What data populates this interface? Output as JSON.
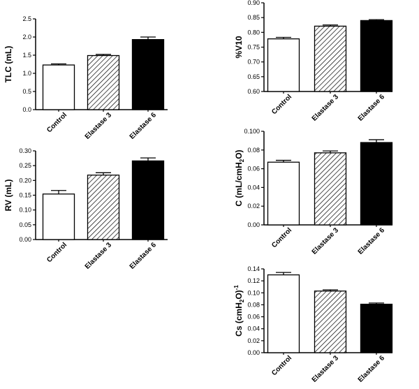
{
  "chart_data": [
    {
      "id": "tlc",
      "type": "bar",
      "title": "",
      "ylabel": "TLC (mL)",
      "ylabel_sub": "",
      "ylabel_tail": "",
      "ylabel_sup": "",
      "categories": [
        "Control",
        "Elastase 3",
        "Elastase 6"
      ],
      "values": [
        1.23,
        1.49,
        1.93
      ],
      "errors": [
        0.03,
        0.03,
        0.07
      ],
      "ylim": [
        0,
        2.5
      ],
      "yticks": [
        0.0,
        0.5,
        1.0,
        1.5,
        2.0,
        2.5
      ],
      "ytick_labels": [
        "0.0",
        "0.5",
        "1.0",
        "1.5",
        "2.0",
        "2.5"
      ]
    },
    {
      "id": "rv",
      "type": "bar",
      "title": "",
      "ylabel": "RV (mL)",
      "ylabel_sub": "",
      "ylabel_tail": "",
      "ylabel_sup": "",
      "categories": [
        "Control",
        "Elastase 3",
        "Elastase 6"
      ],
      "values": [
        0.154,
        0.218,
        0.266
      ],
      "errors": [
        0.012,
        0.008,
        0.01
      ],
      "ylim": [
        0,
        0.3
      ],
      "yticks": [
        0.0,
        0.05,
        0.1,
        0.15,
        0.2,
        0.25,
        0.3
      ],
      "ytick_labels": [
        "0.00",
        "0.05",
        "0.10",
        "0.15",
        "0.20",
        "0.25",
        "0.30"
      ]
    },
    {
      "id": "v10",
      "type": "bar",
      "title": "",
      "ylabel": "%V10",
      "ylabel_sub": "",
      "ylabel_tail": "",
      "ylabel_sup": "",
      "categories": [
        "Control",
        "Elastase 3",
        "Elastase 6"
      ],
      "values": [
        0.778,
        0.821,
        0.84
      ],
      "errors": [
        0.005,
        0.004,
        0.003
      ],
      "ylim": [
        0.6,
        0.9
      ],
      "yticks": [
        0.6,
        0.65,
        0.7,
        0.75,
        0.8,
        0.85,
        0.9
      ],
      "ytick_labels": [
        "0.60",
        "0.65",
        "0.70",
        "0.75",
        "0.80",
        "0.85",
        "0.90"
      ]
    },
    {
      "id": "c",
      "type": "bar",
      "title": "",
      "ylabel": "C (mL/cmH",
      "ylabel_sub": "2",
      "ylabel_tail": "O)",
      "ylabel_sup": "",
      "categories": [
        "Control",
        "Elastase 3",
        "Elastase 6"
      ],
      "values": [
        0.067,
        0.077,
        0.088
      ],
      "errors": [
        0.002,
        0.002,
        0.003
      ],
      "ylim": [
        0,
        0.1
      ],
      "yticks": [
        0.0,
        0.02,
        0.04,
        0.06,
        0.08,
        0.1
      ],
      "ytick_labels": [
        "0.00",
        "0.02",
        "0.04",
        "0.06",
        "0.08",
        "0.100"
      ]
    },
    {
      "id": "cs",
      "type": "bar",
      "title": "",
      "ylabel": "Cs (cmH",
      "ylabel_sub": "2",
      "ylabel_tail": "O)",
      "ylabel_sup": "-1",
      "categories": [
        "Control",
        "Elastase 3",
        "Elastase 6"
      ],
      "values": [
        0.13,
        0.103,
        0.081
      ],
      "errors": [
        0.004,
        0.002,
        0.002
      ],
      "ylim": [
        0,
        0.14
      ],
      "yticks": [
        0.0,
        0.02,
        0.04,
        0.06,
        0.08,
        0.1,
        0.12,
        0.14
      ],
      "ytick_labels": [
        "0.00",
        "0.02",
        "0.04",
        "0.06",
        "0.08",
        "0.10",
        "0.12",
        "0.14"
      ]
    }
  ],
  "bar_styles": [
    "white",
    "hatched",
    "black"
  ]
}
